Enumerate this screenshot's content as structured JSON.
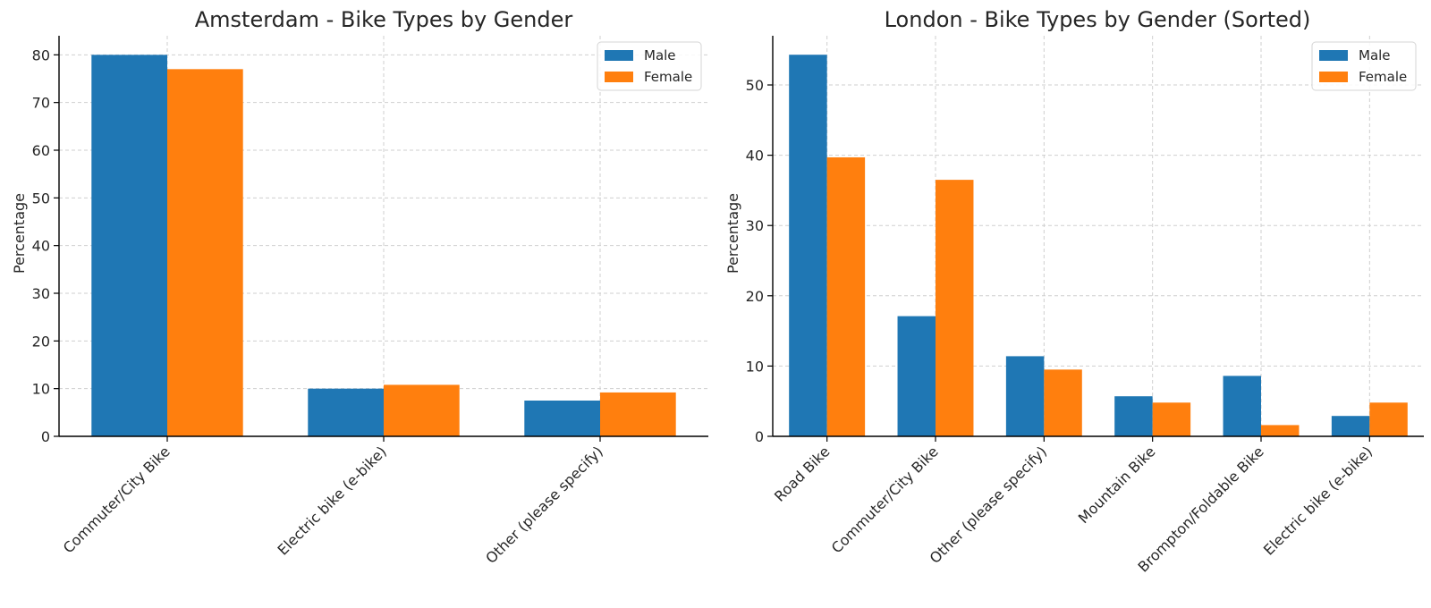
{
  "chart_data": [
    {
      "type": "bar",
      "title": "Amsterdam - Bike Types by Gender",
      "xlabel": "",
      "ylabel": "Percentage",
      "ylim": [
        0,
        84
      ],
      "yticks": [
        0,
        10,
        20,
        30,
        40,
        50,
        60,
        70,
        80
      ],
      "categories": [
        "Commuter/City Bike",
        "Electric bike (e-bike)",
        "Other (please specify)"
      ],
      "series": [
        {
          "name": "Male",
          "color": "#1f77b4",
          "values": [
            80.0,
            10.0,
            7.5
          ]
        },
        {
          "name": "Female",
          "color": "#ff7f0e",
          "values": [
            77.0,
            10.8,
            9.2
          ]
        }
      ],
      "grid": true,
      "legend_position": "top-right"
    },
    {
      "type": "bar",
      "title": "London - Bike Types by Gender (Sorted)",
      "xlabel": "",
      "ylabel": "Percentage",
      "ylim": [
        0,
        57
      ],
      "yticks": [
        0,
        10,
        20,
        30,
        40,
        50
      ],
      "categories": [
        "Road Bike",
        "Commuter/City Bike",
        "Other (please specify)",
        "Mountain Bike",
        "Brompton/Foldable Bike",
        "Electric bike (e-bike)"
      ],
      "series": [
        {
          "name": "Male",
          "color": "#1f77b4",
          "values": [
            54.3,
            17.1,
            11.4,
            5.7,
            8.6,
            2.9
          ]
        },
        {
          "name": "Female",
          "color": "#ff7f0e",
          "values": [
            39.7,
            36.5,
            9.5,
            4.8,
            1.6,
            4.8
          ]
        }
      ],
      "grid": true,
      "legend_position": "top-right"
    }
  ]
}
